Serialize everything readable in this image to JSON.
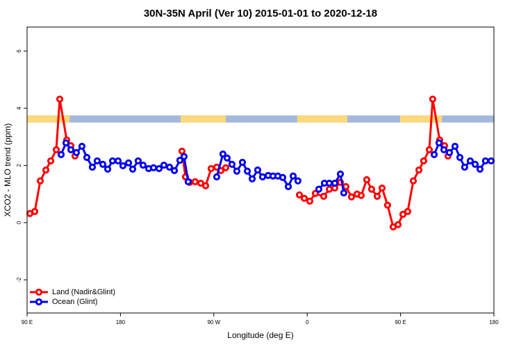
{
  "chart_data": {
    "type": "line",
    "title": "30N-35N April (Ver 10)   2015-01-01 to 2020-12-18",
    "x_label": "Longitude (deg E)",
    "y_label": "XCO2 - MLO trend (ppm)",
    "xlim": [
      90,
      540
    ],
    "xticks": [
      {
        "value": 90,
        "label": "90 E"
      },
      {
        "value": 180,
        "label": "180"
      },
      {
        "value": 270,
        "label": "90 W"
      },
      {
        "value": 360,
        "label": "0"
      },
      {
        "value": 450,
        "label": "90 E"
      },
      {
        "value": 540,
        "label": "180"
      }
    ],
    "ylim": [
      -3.16,
      6.84
    ],
    "yticks": [
      -2,
      0,
      2,
      4,
      6
    ],
    "legend": "bottom-left",
    "mask_band": [
      3.5,
      3.75
    ],
    "mask_ocean_color": "#a3b9dc",
    "mask_land_color": "#fcd97a",
    "land_mask": [
      [
        90,
        131
      ],
      [
        238,
        281.5
      ],
      [
        350.5,
        398.7
      ],
      [
        449.6,
        490
      ]
    ],
    "series": [
      {
        "name": "Land (Nadir&Glint)",
        "color": "#ff0000",
        "x": [
          92.7,
          97.4,
          102.7,
          108.1,
          112.8,
          118.1,
          121.5,
          128.2,
          132.2,
          136.2,
          200,
          239.3,
          242.7,
          246.7,
          252.0,
          257.4,
          262.1,
          267.4,
          272.8,
          276.8,
          281.5,
          320,
          352.5,
          357.2,
          362.5,
          367.9,
          375.9,
          381.3,
          386.6,
          392.0,
          397.3,
          402.7,
          408.1,
          412.1,
          417.4,
          422.1,
          427.5,
          432.2,
          437.5,
          442.9,
          447.6,
          452.3,
          456.9,
          462.3,
          467.7,
          472.3,
          477.7,
          481.0,
          487.7,
          492.4,
          495.8
        ],
        "values": [
          0.32,
          0.39,
          1.46,
          1.84,
          2.16,
          2.55,
          4.32,
          2.89,
          2.69,
          2.33,
          null,
          2.5,
          1.6,
          1.41,
          1.43,
          1.38,
          1.29,
          1.89,
          1.94,
          1.82,
          1.92,
          null,
          0.97,
          0.85,
          0.75,
          1.02,
          0.92,
          1.17,
          1.21,
          1.41,
          1.26,
          0.9,
          1.0,
          0.95,
          1.5,
          1.17,
          0.92,
          1.21,
          0.61,
          -0.15,
          -0.07,
          0.29,
          0.39,
          1.46,
          1.84,
          2.16,
          2.55,
          4.32,
          2.89,
          2.69,
          2.33
        ]
      },
      {
        "name": "Ocean (Glint)",
        "color": "#0000ee",
        "x": [
          122.8,
          127.5,
          132.2,
          137.5,
          142.9,
          147.6,
          152.9,
          157.6,
          163.0,
          167.7,
          172.4,
          177.7,
          182.4,
          187.8,
          191.8,
          197.1,
          201.8,
          207.2,
          211.9,
          217.2,
          221.9,
          227.3,
          232.0,
          237.3,
          241.3,
          245.3,
          260,
          272.8,
          278.8,
          282.8,
          287.5,
          292.2,
          297.6,
          302.3,
          307.0,
          312.3,
          317.0,
          322.4,
          327.0,
          331.7,
          336.4,
          341.8,
          346.5,
          351.1,
          360,
          371.2,
          376.6,
          381.3,
          386.6,
          392.0,
          395.3,
          430,
          482.4,
          487.1,
          491.8,
          497.1,
          502.5,
          507.2,
          511.8,
          517.2,
          521.9,
          526.6,
          531.9,
          537.3
        ],
        "values": [
          2.38,
          2.79,
          2.55,
          2.45,
          2.67,
          2.28,
          1.94,
          2.16,
          2.04,
          1.87,
          2.16,
          2.16,
          1.99,
          2.09,
          1.87,
          2.16,
          2.01,
          1.89,
          1.92,
          1.89,
          2.01,
          1.94,
          1.82,
          2.18,
          2.31,
          1.43,
          null,
          1.6,
          2.4,
          2.26,
          2.04,
          1.8,
          2.11,
          1.8,
          1.53,
          1.84,
          1.6,
          1.65,
          1.63,
          1.63,
          1.58,
          1.26,
          1.63,
          1.46,
          null,
          1.17,
          1.38,
          1.38,
          1.38,
          1.7,
          1.04,
          null,
          2.38,
          2.79,
          2.55,
          2.45,
          2.67,
          2.28,
          1.94,
          2.16,
          2.04,
          1.87,
          2.16,
          2.16
        ]
      }
    ]
  }
}
